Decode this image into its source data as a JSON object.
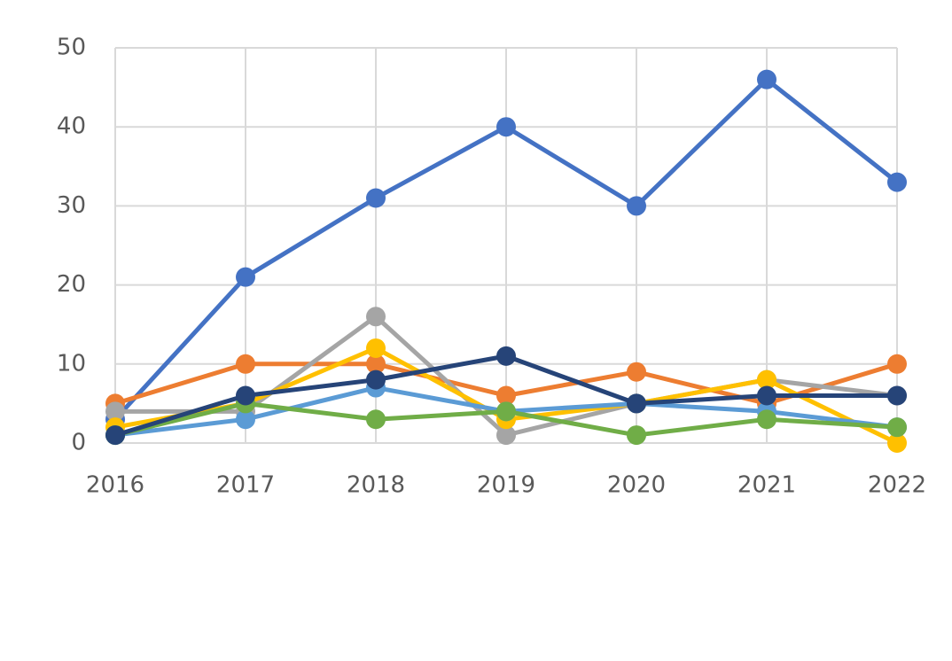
{
  "chart_data": {
    "type": "line",
    "categories": [
      "2016",
      "2017",
      "2018",
      "2019",
      "2020",
      "2021",
      "2022"
    ],
    "series": [
      {
        "color": "#4472c4",
        "values": [
          3,
          21,
          31,
          40,
          30,
          46,
          33
        ]
      },
      {
        "color": "#ed7d31",
        "values": [
          5,
          10,
          10,
          6,
          9,
          5,
          10
        ]
      },
      {
        "color": "#a5a5a5",
        "values": [
          4,
          4,
          16,
          1,
          5,
          8,
          6
        ]
      },
      {
        "color": "#ffc000",
        "values": [
          2,
          5,
          12,
          3,
          5,
          8,
          0
        ]
      },
      {
        "color": "#5b9bd5",
        "values": [
          1,
          3,
          7,
          4,
          5,
          4,
          2
        ]
      },
      {
        "color": "#70ad47",
        "values": [
          1,
          5,
          3,
          4,
          1,
          3,
          2
        ]
      },
      {
        "color": "#264478",
        "values": [
          1,
          6,
          8,
          11,
          5,
          6,
          6
        ]
      }
    ],
    "ylim": [
      0,
      50
    ],
    "yticks": [
      0,
      10,
      20,
      30,
      40,
      50
    ],
    "grid": true
  }
}
